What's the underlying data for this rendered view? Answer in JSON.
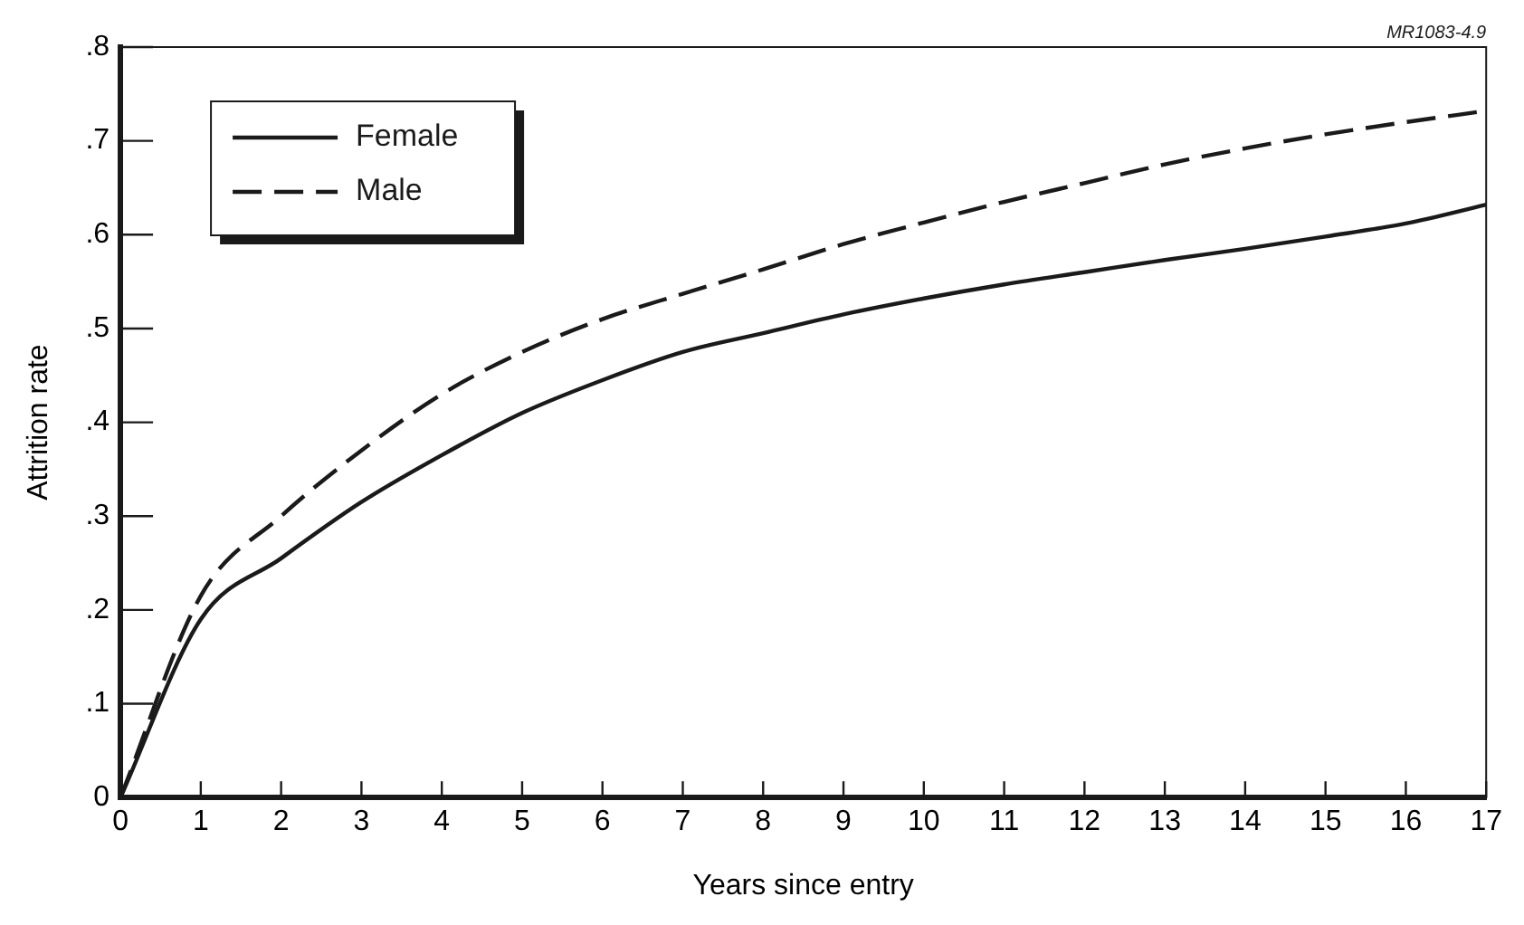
{
  "chart_data": {
    "type": "line",
    "xlabel": "Years since entry",
    "ylabel": "Attrition rate",
    "annotations": [
      "MR1083-4.9"
    ],
    "x": [
      0,
      1,
      2,
      3,
      4,
      5,
      6,
      7,
      8,
      9,
      10,
      11,
      12,
      13,
      14,
      15,
      16,
      17
    ],
    "series": [
      {
        "name": "Female",
        "color": "#1a1a1a",
        "line_style": "solid",
        "values": [
          0,
          0.19,
          0.255,
          0.315,
          0.365,
          0.41,
          0.445,
          0.475,
          0.495,
          0.515,
          0.532,
          0.547,
          0.56,
          0.573,
          0.585,
          0.598,
          0.612,
          0.632
        ]
      },
      {
        "name": "Male",
        "color": "#1a1a1a",
        "line_style": "dashed",
        "values": [
          0,
          0.215,
          0.3,
          0.37,
          0.43,
          0.475,
          0.51,
          0.537,
          0.563,
          0.59,
          0.613,
          0.635,
          0.655,
          0.675,
          0.692,
          0.707,
          0.72,
          0.732
        ]
      }
    ],
    "xlim": [
      0,
      17
    ],
    "xticks": [
      0,
      1,
      2,
      3,
      4,
      5,
      6,
      7,
      8,
      9,
      10,
      11,
      12,
      13,
      14,
      15,
      16,
      17
    ],
    "ylim": [
      0,
      0.8
    ],
    "yticks": [
      0,
      {
        "value": 0.1,
        "label": ".1"
      },
      {
        "value": 0.2,
        "label": ".2"
      },
      {
        "value": 0.3,
        "label": ".3"
      },
      {
        "value": 0.4,
        "label": ".4"
      },
      {
        "value": 0.5,
        "label": ".5"
      },
      {
        "value": 0.6,
        "label": ".6"
      },
      {
        "value": 0.7,
        "label": ".7"
      },
      {
        "value": 0.8,
        "label": ".8"
      }
    ],
    "grid": false,
    "legend": "top left",
    "marker": "none"
  }
}
